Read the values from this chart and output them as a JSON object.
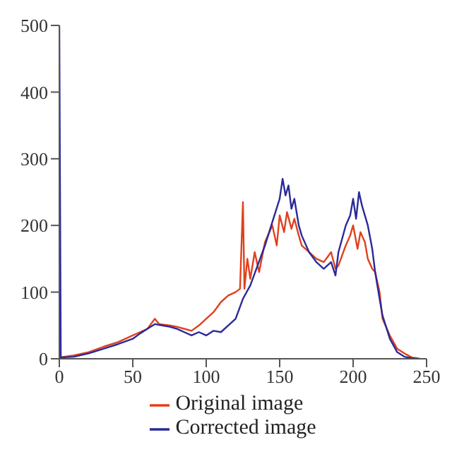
{
  "chart_data": {
    "type": "line",
    "xlim": [
      0,
      250
    ],
    "ylim": [
      0,
      500
    ],
    "xticks": [
      0,
      50,
      100,
      150,
      200,
      250
    ],
    "yticks": [
      0,
      100,
      200,
      300,
      400,
      500
    ],
    "grid": false,
    "legend": "bottom",
    "marker": "none",
    "line_style": "solid",
    "series": [
      {
        "name": "Original image",
        "color": "#e0401c",
        "x": [
          0,
          10,
          20,
          30,
          40,
          50,
          55,
          60,
          65,
          68,
          75,
          80,
          85,
          90,
          95,
          100,
          105,
          110,
          115,
          120,
          123,
          125,
          126,
          128,
          130,
          133,
          136,
          140,
          145,
          148,
          150,
          153,
          155,
          158,
          160,
          163,
          165,
          170,
          175,
          180,
          185,
          188,
          190,
          195,
          198,
          200,
          203,
          205,
          208,
          210,
          213,
          215,
          218,
          220,
          225,
          230,
          235,
          240,
          245
        ],
        "values": [
          2,
          5,
          10,
          18,
          25,
          35,
          40,
          45,
          60,
          52,
          50,
          48,
          45,
          42,
          50,
          60,
          70,
          85,
          95,
          100,
          105,
          235,
          105,
          150,
          120,
          160,
          130,
          175,
          200,
          170,
          215,
          190,
          220,
          195,
          210,
          185,
          170,
          160,
          150,
          145,
          160,
          135,
          140,
          170,
          185,
          200,
          165,
          190,
          175,
          150,
          135,
          130,
          100,
          60,
          35,
          15,
          8,
          2,
          0
        ]
      },
      {
        "name": "Corrected image",
        "color": "#2a2a9a",
        "x": [
          0,
          1,
          10,
          20,
          30,
          40,
          50,
          55,
          60,
          65,
          70,
          75,
          80,
          85,
          90,
          95,
          100,
          105,
          110,
          115,
          120,
          125,
          130,
          135,
          140,
          145,
          150,
          152,
          154,
          156,
          158,
          160,
          163,
          165,
          170,
          175,
          180,
          185,
          188,
          190,
          195,
          198,
          200,
          202,
          204,
          206,
          210,
          213,
          215,
          218,
          220,
          225,
          230,
          235,
          240,
          245
        ],
        "values": [
          500,
          2,
          3,
          8,
          15,
          22,
          30,
          38,
          45,
          52,
          50,
          48,
          45,
          40,
          35,
          40,
          35,
          42,
          40,
          50,
          60,
          90,
          110,
          140,
          170,
          205,
          240,
          270,
          245,
          260,
          225,
          240,
          200,
          185,
          160,
          145,
          135,
          145,
          125,
          160,
          200,
          215,
          240,
          210,
          250,
          230,
          200,
          165,
          130,
          90,
          65,
          30,
          10,
          3,
          1,
          0
        ]
      }
    ]
  }
}
